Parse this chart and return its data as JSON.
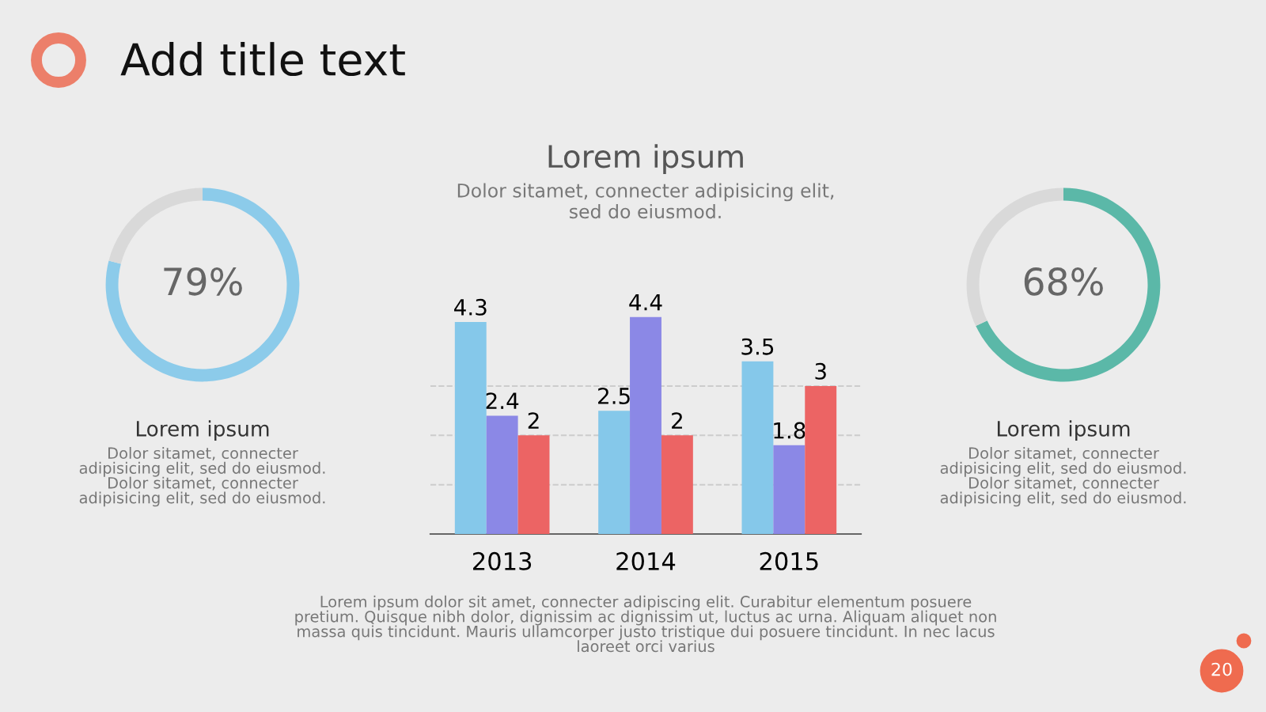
{
  "chart_data": [
    {
      "type": "other",
      "title": "Add title text",
      "annotations": [
        "20"
      ]
    },
    {
      "type": "donut",
      "categories": [
        null,
        null
      ],
      "values": [
        79,
        21
      ],
      "colors": [
        "#8ccbea",
        "#d9d9d9"
      ],
      "value_labels": [
        "79%",
        null
      ],
      "title": "Lorem ipsum",
      "subtitle": "Dolor sitamet, connecter\nadipisicing elit, sed do eiusmod.\nDolor sitamet, connecter\nadipisicing elit, sed do eiusmod."
    },
    {
      "type": "bar",
      "title": "Lorem ipsum",
      "subtitle": "Dolor sitamet, connecter adipisicing elit,\nsed do eiusmod.",
      "categories": [
        "2013",
        "2014",
        "2015"
      ],
      "series": [
        {
          "color": "#85c8ea",
          "values": [
            4.3,
            2.5,
            3.5
          ]
        },
        {
          "color": "#8b88e6",
          "values": [
            2.4,
            4.4,
            1.8
          ]
        },
        {
          "color": "#ec6464",
          "values": [
            2,
            2,
            3
          ]
        }
      ],
      "yticks": [
        {
          "value": 1,
          "label": null
        },
        {
          "value": 2,
          "label": null
        },
        {
          "value": 3,
          "label": null
        }
      ],
      "grid": "y",
      "data_labels": true,
      "tick_labels": "x",
      "annotations": [
        "Lorem ipsum dolor sit amet, connecter adipiscing elit. Curabitur elementum posuere\npretium. Quisque nibh dolor, dignissim ac dignissim ut, luctus ac urna. Aliquam aliquet non\nmassa quis tincidunt. Mauris ullamcorper justo tristique dui posuere tincidunt. In nec lacus\nlaoreet orci varius"
      ]
    },
    {
      "type": "donut",
      "categories": [
        null,
        null
      ],
      "values": [
        68,
        32
      ],
      "colors": [
        "#5bb8a8",
        "#d9d9d9"
      ],
      "value_labels": [
        "68%",
        null
      ],
      "title": "Lorem ipsum",
      "subtitle": "Dolor sitamet, connecter\nadipisicing elit, sed do eiusmod.\nDolor sitamet, connecter\nadipisicing elit, sed do eiusmod."
    }
  ]
}
